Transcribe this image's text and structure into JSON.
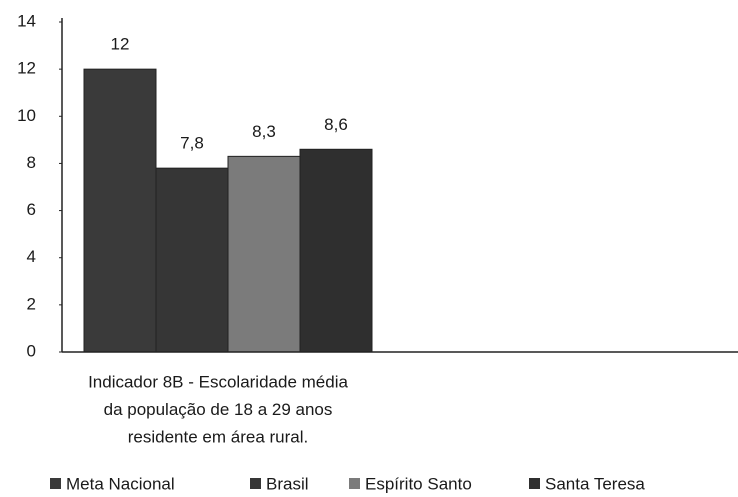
{
  "chart_data": {
    "type": "bar",
    "categories": [
      [
        "Indicador 8B - Escolaridade média",
        "da população de 18 a 29 anos",
        "residente em área rural."
      ]
    ],
    "series": [
      {
        "name": "Meta Nacional",
        "color": "#3a3a3a",
        "values": [
          12
        ],
        "value_labels": [
          "12"
        ]
      },
      {
        "name": "Brasil",
        "color": "#363636",
        "values": [
          7.8
        ],
        "value_labels": [
          "7,8"
        ]
      },
      {
        "name": "Espírito Santo",
        "color": "#7b7b7b",
        "values": [
          8.3
        ],
        "value_labels": [
          "8,3"
        ]
      },
      {
        "name": "Santa Teresa",
        "color": "#2f2f2f",
        "values": [
          8.6
        ],
        "value_labels": [
          "8,6"
        ]
      }
    ],
    "ylim": [
      0,
      14
    ],
    "yticks": [
      0,
      2,
      4,
      6,
      8,
      10,
      12,
      14
    ],
    "grid": false,
    "legend": "bottom"
  }
}
